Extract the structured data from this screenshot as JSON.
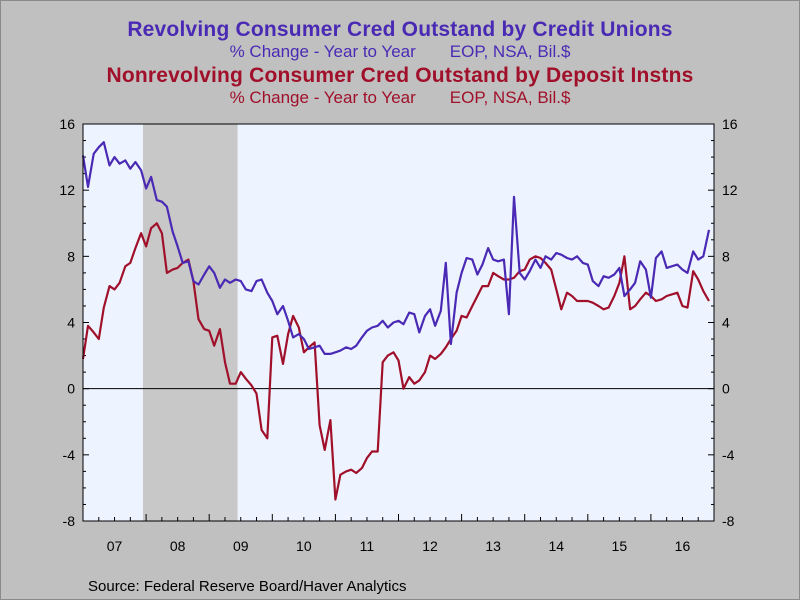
{
  "titles": {
    "series1_title": "Revolving Consumer Cred Outstand by Credit Unions",
    "series1_sub_a": "% Change - Year to Year",
    "series1_sub_b": "EOP, NSA, Bil.$",
    "series2_title": "Nonrevolving Consumer Cred Outstand by Deposit Instns",
    "series2_sub_a": "% Change - Year to Year",
    "series2_sub_b": "EOP, NSA, Bil.$"
  },
  "source": "Source:  Federal Reserve Board/Haver Analytics",
  "colors": {
    "series1": "#4a2ab4",
    "series2": "#a0102a",
    "plot_bg": "#eef4ff",
    "recession": "#c8c8c8",
    "frame_bg": "#c0c0c0"
  },
  "chart_data": {
    "type": "line",
    "x_start": 2007.0,
    "x_end": 2017.0,
    "ylim": [
      -8,
      16
    ],
    "yticks": [
      "-8",
      "-4",
      "0",
      "4",
      "8",
      "12",
      "16"
    ],
    "ytick_values": [
      -8,
      -4,
      0,
      4,
      8,
      12,
      16
    ],
    "xtick_labels": [
      "07",
      "08",
      "09",
      "10",
      "11",
      "12",
      "13",
      "14",
      "15",
      "16"
    ],
    "xtick_years": [
      2007,
      2008,
      2009,
      2010,
      2011,
      2012,
      2013,
      2014,
      2015,
      2016
    ],
    "recession": [
      2007.95,
      2009.45
    ],
    "grid": false,
    "series": [
      {
        "name": "Revolving Consumer Cred Outstand by Credit Unions",
        "x": [
          2007.0,
          2007.08,
          2007.17,
          2007.25,
          2007.33,
          2007.42,
          2007.5,
          2007.58,
          2007.67,
          2007.75,
          2007.83,
          2007.92,
          2008.0,
          2008.08,
          2008.17,
          2008.25,
          2008.33,
          2008.42,
          2008.5,
          2008.58,
          2008.67,
          2008.75,
          2008.83,
          2008.92,
          2009.0,
          2009.08,
          2009.17,
          2009.25,
          2009.33,
          2009.42,
          2009.5,
          2009.58,
          2009.67,
          2009.75,
          2009.83,
          2009.92,
          2010.0,
          2010.08,
          2010.17,
          2010.25,
          2010.33,
          2010.42,
          2010.5,
          2010.58,
          2010.67,
          2010.75,
          2010.83,
          2010.92,
          2011.0,
          2011.08,
          2011.17,
          2011.25,
          2011.33,
          2011.42,
          2011.5,
          2011.58,
          2011.67,
          2011.75,
          2011.83,
          2011.92,
          2012.0,
          2012.08,
          2012.17,
          2012.25,
          2012.33,
          2012.42,
          2012.5,
          2012.58,
          2012.67,
          2012.75,
          2012.83,
          2012.92,
          2013.0,
          2013.08,
          2013.17,
          2013.25,
          2013.33,
          2013.42,
          2013.5,
          2013.58,
          2013.67,
          2013.75,
          2013.83,
          2013.92,
          2014.0,
          2014.08,
          2014.17,
          2014.25,
          2014.33,
          2014.42,
          2014.5,
          2014.58,
          2014.67,
          2014.75,
          2014.83,
          2014.92,
          2015.0,
          2015.08,
          2015.17,
          2015.25,
          2015.33,
          2015.42,
          2015.5,
          2015.58,
          2015.67,
          2015.75,
          2015.83,
          2015.92,
          2016.0,
          2016.08,
          2016.17,
          2016.25,
          2016.33,
          2016.42,
          2016.5,
          2016.58,
          2016.67,
          2016.75,
          2016.83,
          2016.92
        ],
        "values": [
          14.1,
          12.2,
          14.2,
          14.6,
          14.9,
          13.5,
          14.0,
          13.6,
          13.8,
          13.3,
          13.7,
          13.2,
          12.1,
          12.8,
          11.4,
          11.3,
          11.0,
          9.5,
          8.6,
          7.6,
          7.7,
          6.5,
          6.3,
          6.9,
          7.4,
          7.0,
          6.1,
          6.6,
          6.4,
          6.6,
          6.5,
          6.0,
          5.9,
          6.5,
          6.6,
          5.8,
          5.3,
          4.5,
          5.0,
          4.1,
          3.1,
          3.3,
          3.0,
          2.4,
          2.5,
          2.6,
          2.1,
          2.1,
          2.2,
          2.3,
          2.5,
          2.4,
          2.6,
          3.1,
          3.5,
          3.7,
          3.8,
          4.1,
          3.7,
          4.0,
          4.1,
          3.9,
          4.6,
          4.5,
          3.4,
          4.4,
          4.8,
          3.8,
          4.7,
          7.6,
          2.7,
          5.8,
          7.0,
          7.9,
          7.8,
          6.9,
          7.5,
          8.5,
          7.8,
          7.7,
          7.8,
          4.5,
          11.6,
          7.0,
          6.6,
          7.1,
          7.8,
          7.3,
          8.0,
          7.8,
          8.2,
          8.1,
          7.9,
          7.8,
          8.0,
          7.6,
          7.5,
          6.5,
          6.2,
          6.8,
          6.7,
          6.9,
          7.3,
          5.6,
          6.0,
          6.4,
          7.7,
          7.2,
          5.5,
          7.9,
          8.3,
          7.3,
          7.4,
          7.5,
          7.2,
          7.0,
          8.3,
          7.8,
          8.0,
          9.6
        ]
      },
      {
        "name": "Nonrevolving Consumer Cred Outstand by Deposit Instns",
        "x": [
          2007.0,
          2007.08,
          2007.17,
          2007.25,
          2007.33,
          2007.42,
          2007.5,
          2007.58,
          2007.67,
          2007.75,
          2007.83,
          2007.92,
          2008.0,
          2008.08,
          2008.17,
          2008.25,
          2008.33,
          2008.42,
          2008.5,
          2008.58,
          2008.67,
          2008.75,
          2008.83,
          2008.92,
          2009.0,
          2009.08,
          2009.17,
          2009.25,
          2009.33,
          2009.42,
          2009.5,
          2009.58,
          2009.67,
          2009.75,
          2009.83,
          2009.92,
          2010.0,
          2010.08,
          2010.17,
          2010.25,
          2010.33,
          2010.42,
          2010.5,
          2010.58,
          2010.67,
          2010.75,
          2010.83,
          2010.92,
          2011.0,
          2011.08,
          2011.17,
          2011.25,
          2011.33,
          2011.42,
          2011.5,
          2011.58,
          2011.67,
          2011.75,
          2011.83,
          2011.92,
          2012.0,
          2012.08,
          2012.17,
          2012.25,
          2012.33,
          2012.42,
          2012.5,
          2012.58,
          2012.67,
          2012.75,
          2012.83,
          2012.92,
          2013.0,
          2013.08,
          2013.17,
          2013.25,
          2013.33,
          2013.42,
          2013.5,
          2013.58,
          2013.67,
          2013.75,
          2013.83,
          2013.92,
          2014.0,
          2014.08,
          2014.17,
          2014.25,
          2014.33,
          2014.42,
          2014.5,
          2014.58,
          2014.67,
          2014.75,
          2014.83,
          2014.92,
          2015.0,
          2015.08,
          2015.17,
          2015.25,
          2015.33,
          2015.42,
          2015.5,
          2015.58,
          2015.67,
          2015.75,
          2015.83,
          2015.92,
          2016.0,
          2016.08,
          2016.17,
          2016.25,
          2016.33,
          2016.42,
          2016.5,
          2016.58,
          2016.67,
          2016.75,
          2016.83,
          2016.92
        ],
        "values": [
          1.8,
          3.8,
          3.4,
          3.0,
          4.9,
          6.2,
          6.0,
          6.4,
          7.4,
          7.6,
          8.5,
          9.4,
          8.6,
          9.7,
          10.0,
          9.4,
          7.0,
          7.2,
          7.3,
          7.6,
          7.8,
          6.5,
          4.2,
          3.6,
          3.5,
          2.6,
          3.6,
          1.6,
          0.3,
          0.3,
          1.0,
          0.6,
          0.2,
          -0.3,
          -2.5,
          -3.0,
          3.1,
          3.2,
          1.5,
          3.3,
          4.4,
          3.7,
          2.2,
          2.5,
          2.8,
          -2.2,
          -3.7,
          -1.9,
          -6.7,
          -5.2,
          -5.0,
          -4.9,
          -5.1,
          -4.8,
          -4.2,
          -3.8,
          -3.8,
          1.6,
          2.0,
          2.2,
          1.7,
          0.0,
          0.7,
          0.3,
          0.5,
          1.0,
          2.0,
          1.8,
          2.1,
          2.5,
          3.0,
          3.5,
          4.4,
          4.3,
          5.0,
          5.6,
          6.2,
          6.2,
          7.0,
          6.8,
          6.6,
          6.6,
          6.7,
          7.1,
          7.2,
          7.8,
          8.0,
          7.9,
          7.6,
          7.2,
          6.0,
          4.8,
          5.8,
          5.6,
          5.3,
          5.3,
          5.3,
          5.2,
          5.0,
          4.8,
          4.9,
          5.6,
          6.4,
          8.0,
          4.8,
          5.0,
          5.4,
          5.8,
          5.6,
          5.3,
          5.4,
          5.6,
          5.7,
          5.8,
          5.0,
          4.9,
          7.1,
          6.6,
          5.9,
          5.3
        ]
      }
    ]
  }
}
